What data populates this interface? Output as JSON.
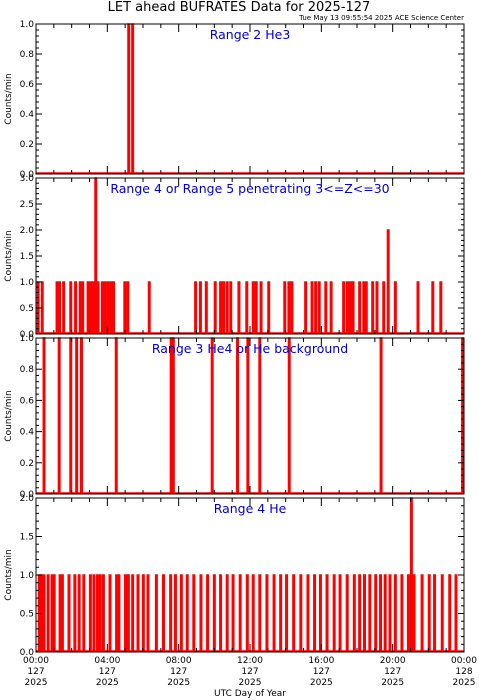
{
  "title": "LET ahead BUFRATES Data for 2025-127",
  "timestamp": "Tue May 13 09:55:54 2025 ACE Science Center",
  "xlabel": "UTC Day of Year",
  "colors": {
    "data": "#ff0000",
    "title": "#0000cc",
    "axes": "#000000"
  },
  "x_ticks": [
    {
      "time": "00:00",
      "doy": "127",
      "year": "2025"
    },
    {
      "time": "04:00",
      "doy": "127",
      "year": "2025"
    },
    {
      "time": "08:00",
      "doy": "127",
      "year": "2025"
    },
    {
      "time": "12:00",
      "doy": "127",
      "year": "2025"
    },
    {
      "time": "16:00",
      "doy": "127",
      "year": "2025"
    },
    {
      "time": "20:00",
      "doy": "127",
      "year": "2025"
    },
    {
      "time": "00:00",
      "doy": "128",
      "year": "2025"
    }
  ],
  "chart_data": [
    {
      "type": "line",
      "title": "Range 2 He3",
      "ylabel": "Counts/min",
      "ylim": [
        0,
        1.0
      ],
      "yticks": [
        "0.0",
        "0.2",
        "0.4",
        "0.6",
        "0.8",
        "1.0"
      ],
      "xlim_hours": [
        0,
        24
      ],
      "spikes": [
        [
          5.2,
          1.0
        ],
        [
          5.42,
          1.0
        ]
      ]
    },
    {
      "type": "line",
      "title": "Range 4 or Range 5 penetrating 3<=Z<=30",
      "ylabel": "Counts/min",
      "ylim": [
        0,
        3.0
      ],
      "yticks": [
        "0.0",
        "0.5",
        "1.0",
        "1.5",
        "2.0",
        "2.5",
        "3.0"
      ],
      "xlim_hours": [
        0,
        24
      ],
      "spikes": [
        [
          0.12,
          1
        ],
        [
          0.35,
          1
        ],
        [
          1.18,
          1
        ],
        [
          1.32,
          1
        ],
        [
          1.55,
          1
        ],
        [
          1.95,
          1
        ],
        [
          2.22,
          1
        ],
        [
          2.48,
          1
        ],
        [
          2.62,
          1
        ],
        [
          2.92,
          1
        ],
        [
          3.05,
          1
        ],
        [
          3.2,
          1
        ],
        [
          3.35,
          3
        ],
        [
          3.48,
          1
        ],
        [
          3.72,
          1
        ],
        [
          3.88,
          1
        ],
        [
          4.05,
          1
        ],
        [
          4.22,
          1
        ],
        [
          4.35,
          1
        ],
        [
          4.98,
          1
        ],
        [
          5.15,
          1
        ],
        [
          6.35,
          1
        ],
        [
          8.95,
          1
        ],
        [
          9.22,
          1
        ],
        [
          9.55,
          1
        ],
        [
          10.05,
          1
        ],
        [
          10.35,
          1
        ],
        [
          10.52,
          1
        ],
        [
          10.72,
          1
        ],
        [
          10.92,
          1
        ],
        [
          11.38,
          1
        ],
        [
          11.82,
          1
        ],
        [
          12.18,
          1
        ],
        [
          12.35,
          1
        ],
        [
          12.62,
          1
        ],
        [
          13.05,
          1
        ],
        [
          13.95,
          1
        ],
        [
          14.18,
          1
        ],
        [
          14.35,
          1
        ],
        [
          15.12,
          1
        ],
        [
          15.48,
          1
        ],
        [
          15.68,
          1
        ],
        [
          15.88,
          1
        ],
        [
          16.25,
          1
        ],
        [
          16.55,
          1
        ],
        [
          17.25,
          1
        ],
        [
          17.45,
          1
        ],
        [
          17.62,
          1
        ],
        [
          17.78,
          1
        ],
        [
          18.15,
          1
        ],
        [
          18.38,
          1
        ],
        [
          18.52,
          1
        ],
        [
          18.88,
          1
        ],
        [
          19.12,
          1
        ],
        [
          19.5,
          1
        ],
        [
          19.75,
          2
        ],
        [
          20.15,
          1
        ],
        [
          21.42,
          1
        ],
        [
          22.25,
          1
        ],
        [
          22.7,
          1
        ]
      ]
    },
    {
      "type": "line",
      "title": "Range 3 He4 or He background",
      "ylabel": "Counts/min",
      "ylim": [
        0,
        1.0
      ],
      "yticks": [
        "0.0",
        "0.2",
        "0.4",
        "0.6",
        "0.8",
        "1.0"
      ],
      "xlim_hours": [
        0,
        24
      ],
      "spikes": [
        [
          0.45,
          1
        ],
        [
          1.3,
          1
        ],
        [
          1.95,
          1
        ],
        [
          2.28,
          1
        ],
        [
          2.55,
          1
        ],
        [
          4.5,
          1
        ],
        [
          7.58,
          1
        ],
        [
          7.7,
          1
        ],
        [
          9.88,
          1
        ],
        [
          11.3,
          1
        ],
        [
          11.88,
          1
        ],
        [
          12.55,
          1
        ],
        [
          14.2,
          1
        ],
        [
          19.35,
          1
        ],
        [
          23.92,
          1
        ]
      ]
    },
    {
      "type": "line",
      "title": "Range 4 He",
      "ylabel": "Counts/min",
      "ylim": [
        0,
        2.0
      ],
      "yticks": [
        "0.0",
        "0.5",
        "1.0",
        "1.5",
        "2.0"
      ],
      "xlim_hours": [
        0,
        24
      ],
      "spikes": [
        [
          0.18,
          1
        ],
        [
          0.32,
          1
        ],
        [
          0.45,
          1
        ],
        [
          0.68,
          1
        ],
        [
          0.9,
          1
        ],
        [
          1.02,
          1
        ],
        [
          1.35,
          1
        ],
        [
          1.48,
          1
        ],
        [
          1.85,
          1
        ],
        [
          2.18,
          1
        ],
        [
          2.42,
          1
        ],
        [
          2.68,
          1
        ],
        [
          3.05,
          1
        ],
        [
          3.25,
          1
        ],
        [
          3.45,
          1
        ],
        [
          3.6,
          1
        ],
        [
          3.78,
          1
        ],
        [
          4.15,
          1
        ],
        [
          4.52,
          1
        ],
        [
          4.65,
          1
        ],
        [
          5.02,
          1
        ],
        [
          5.18,
          1
        ],
        [
          5.42,
          1
        ],
        [
          5.72,
          1
        ],
        [
          6.02,
          1
        ],
        [
          6.28,
          1
        ],
        [
          6.75,
          1
        ],
        [
          7.15,
          1
        ],
        [
          7.55,
          1
        ],
        [
          7.82,
          1
        ],
        [
          8.15,
          1
        ],
        [
          8.48,
          1
        ],
        [
          8.85,
          1
        ],
        [
          9.25,
          1
        ],
        [
          9.62,
          1
        ],
        [
          10.0,
          1
        ],
        [
          10.35,
          1
        ],
        [
          10.72,
          1
        ],
        [
          11.05,
          1
        ],
        [
          11.45,
          1
        ],
        [
          11.85,
          1
        ],
        [
          12.18,
          1
        ],
        [
          12.55,
          1
        ],
        [
          12.95,
          1
        ],
        [
          13.35,
          1
        ],
        [
          13.72,
          1
        ],
        [
          14.05,
          1
        ],
        [
          14.45,
          1
        ],
        [
          14.85,
          1
        ],
        [
          15.25,
          1
        ],
        [
          15.62,
          1
        ],
        [
          15.95,
          1
        ],
        [
          16.32,
          1
        ],
        [
          16.72,
          1
        ],
        [
          17.05,
          1
        ],
        [
          17.45,
          1
        ],
        [
          17.85,
          1
        ],
        [
          18.15,
          1
        ],
        [
          18.42,
          1
        ],
        [
          18.72,
          1
        ],
        [
          19.05,
          1
        ],
        [
          19.32,
          1
        ],
        [
          19.58,
          1
        ],
        [
          19.85,
          1
        ],
        [
          20.15,
          1
        ],
        [
          20.52,
          1
        ],
        [
          20.88,
          1
        ],
        [
          21.05,
          2
        ],
        [
          21.2,
          1
        ],
        [
          21.65,
          1
        ],
        [
          22.05,
          1
        ],
        [
          22.35,
          1
        ],
        [
          22.78,
          1
        ],
        [
          23.2,
          1
        ],
        [
          23.55,
          1
        ]
      ]
    }
  ]
}
